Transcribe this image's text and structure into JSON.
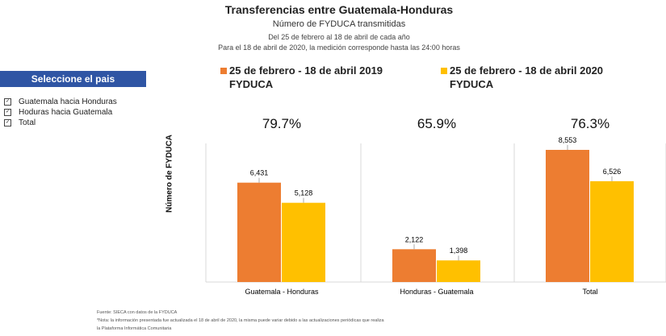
{
  "chart_data": {
    "type": "bar",
    "title": "Transferencias entre Guatemala-Honduras",
    "subtitle": "Número de FYDUCA transmitidas",
    "subtitle2": "Del 25 de febrero al 18 de abril de cada año",
    "subtitle3": "Para el 18 de abril de 2020, la medición corresponde hasta las 24:00 horas",
    "ylabel": "Número de FYDUCA",
    "categories": [
      "Guatemala - Honduras",
      "Honduras - Guatemala",
      "Total"
    ],
    "ratios": [
      "79.7%",
      "65.9%",
      "76.3%"
    ],
    "series": [
      {
        "name": "25 de febrero - 18 de abril 2019 FYDUCA",
        "name_line1": "25 de febrero - 18 de abril 2019",
        "name_line2": "FYDUCA",
        "color": "#ED7D31",
        "values": [
          6431,
          2122,
          8553
        ],
        "labels": [
          "6,431",
          "2,122",
          "8,553"
        ]
      },
      {
        "name": "25 de febrero - 18 de abril 2020 FYDUCA",
        "name_line1": "25 de febrero - 18 de abril 2020",
        "name_line2": "FYDUCA",
        "color": "#FFC000",
        "values": [
          5128,
          1398,
          6526
        ],
        "labels": [
          "5,128",
          "1,398",
          "6,526"
        ]
      }
    ],
    "ylim": [
      0,
      8553
    ],
    "grid": false,
    "legend": "top"
  },
  "filter": {
    "title": "Seleccione el pais",
    "items": [
      {
        "label": "Guatemala hacia Honduras",
        "checked": true
      },
      {
        "label": "Hoduras hacia Guatemala",
        "checked": true
      },
      {
        "label": "Total",
        "checked": true
      }
    ],
    "check_glyph": "✓"
  },
  "footnotes": [
    "Fuente: SIECA con datos de la FYDUCA",
    "*Nota: la información presentada fue actualizada el 18 de abril de 2020, la misma puede variar debido a las actualizaciones periódicas que realiza",
    "la Plataforma Informática Comunitaria"
  ]
}
